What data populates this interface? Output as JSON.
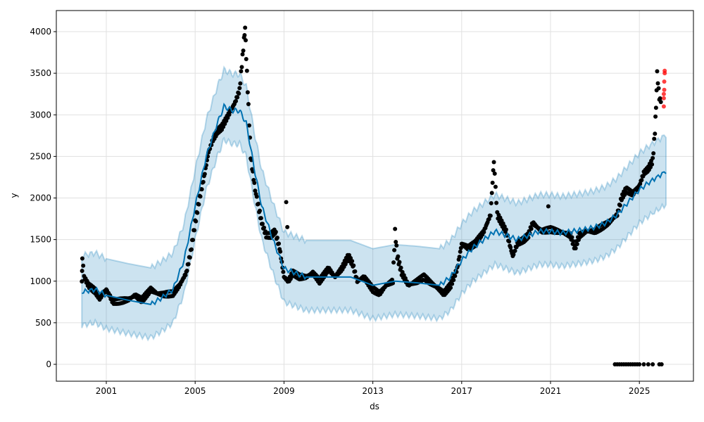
{
  "chart_data": {
    "type": "line",
    "title": "",
    "xlabel": "ds",
    "ylabel": "y",
    "xlim": [
      1999.0,
      2026.9
    ],
    "ylim": [
      -200,
      4250
    ],
    "xticks": [
      2001,
      2005,
      2009,
      2013,
      2017,
      2021,
      2025
    ],
    "xtick_labels": [
      "2001",
      "2005",
      "2009",
      "2013",
      "2017",
      "2021",
      "2025"
    ],
    "yticks": [
      0,
      500,
      1000,
      1500,
      2000,
      2500,
      3000,
      3500,
      4000
    ],
    "ytick_labels": [
      "0",
      "500",
      "1000",
      "1500",
      "2000",
      "2500",
      "3000",
      "3500",
      "4000"
    ],
    "grid": true,
    "colors": {
      "forecast": "#0072B2",
      "band": "#0072B2",
      "observed": "#000000",
      "future_observed": "#ff0000"
    },
    "forecast": {
      "x": [
        1999.9,
        2000.5,
        2001,
        2002,
        2003,
        2003.5,
        2004,
        2004.5,
        2005,
        2005.5,
        2006,
        2006.3,
        2006.7,
        2007,
        2007.3,
        2007.7,
        2008,
        2008.5,
        2009,
        2009.5,
        2010,
        2011,
        2012,
        2013,
        2014,
        2015,
        2016,
        2016.5,
        2017,
        2017.5,
        2018,
        2018.5,
        2019,
        2019.5,
        2020,
        2020.5,
        2021,
        2021.5,
        2022,
        2022.5,
        2023,
        2023.5,
        2024,
        2024.5,
        2025,
        2025.5,
        2026.2
      ],
      "yhat": [
        870,
        900,
        830,
        770,
        720,
        800,
        900,
        1250,
        1900,
        2500,
        2900,
        3100,
        3050,
        3050,
        2900,
        2300,
        1900,
        1500,
        1150,
        1100,
        1050,
        1050,
        1050,
        950,
        1000,
        980,
        950,
        1050,
        1250,
        1400,
        1500,
        1600,
        1550,
        1500,
        1550,
        1600,
        1600,
        1580,
        1600,
        1620,
        1650,
        1700,
        1800,
        1950,
        2100,
        2200,
        2320
      ]
    },
    "band_offset": {
      "upper": 440,
      "lower": 400
    },
    "observed": [
      [
        1999.9,
        1000
      ],
      [
        1999.92,
        1300
      ],
      [
        2000.0,
        1050
      ],
      [
        2000.2,
        950
      ],
      [
        2000.5,
        880
      ],
      [
        2000.7,
        800
      ],
      [
        2001,
        900
      ],
      [
        2001.3,
        750
      ],
      [
        2001.6,
        760
      ],
      [
        2002,
        780
      ],
      [
        2002.3,
        830
      ],
      [
        2002.6,
        770
      ],
      [
        2003,
        900
      ],
      [
        2003.3,
        850
      ],
      [
        2003.6,
        840
      ],
      [
        2004,
        850
      ],
      [
        2004.3,
        950
      ],
      [
        2004.6,
        1100
      ],
      [
        2004.8,
        1350
      ],
      [
        2005,
        1700
      ],
      [
        2005.2,
        2000
      ],
      [
        2005.4,
        2250
      ],
      [
        2005.6,
        2550
      ],
      [
        2005.8,
        2700
      ],
      [
        2006,
        2800
      ],
      [
        2006.2,
        2850
      ],
      [
        2006.4,
        2950
      ],
      [
        2006.6,
        3050
      ],
      [
        2006.8,
        3150
      ],
      [
        2007,
        3300
      ],
      [
        2007.1,
        3600
      ],
      [
        2007.2,
        3900
      ],
      [
        2007.25,
        4050
      ],
      [
        2007.3,
        3700
      ],
      [
        2007.4,
        3100
      ],
      [
        2007.5,
        2500
      ],
      [
        2007.6,
        2300
      ],
      [
        2007.7,
        2100
      ],
      [
        2007.85,
        1900
      ],
      [
        2008,
        1700
      ],
      [
        2008.2,
        1550
      ],
      [
        2008.4,
        1550
      ],
      [
        2008.6,
        1600
      ],
      [
        2008.8,
        1400
      ],
      [
        2009,
        1050
      ],
      [
        2009.2,
        1000
      ],
      [
        2009.4,
        1100
      ],
      [
        2009.7,
        1050
      ],
      [
        2010,
        1050
      ],
      [
        2010.3,
        1100
      ],
      [
        2010.6,
        1000
      ],
      [
        2011,
        1150
      ],
      [
        2011.3,
        1050
      ],
      [
        2011.6,
        1150
      ],
      [
        2011.9,
        1300
      ],
      [
        2012.1,
        1200
      ],
      [
        2012.3,
        1000
      ],
      [
        2012.6,
        1050
      ],
      [
        2013,
        900
      ],
      [
        2013.3,
        850
      ],
      [
        2013.6,
        950
      ],
      [
        2013.9,
        1000
      ],
      [
        2014,
        1600
      ],
      [
        2014.1,
        1300
      ],
      [
        2014.3,
        1100
      ],
      [
        2014.6,
        950
      ],
      [
        2015,
        1000
      ],
      [
        2015.3,
        1050
      ],
      [
        2015.6,
        980
      ],
      [
        2016,
        900
      ],
      [
        2016.2,
        850
      ],
      [
        2016.5,
        950
      ],
      [
        2016.8,
        1150
      ],
      [
        2017,
        1450
      ],
      [
        2017.3,
        1400
      ],
      [
        2017.6,
        1450
      ],
      [
        2018,
        1600
      ],
      [
        2018.3,
        1800
      ],
      [
        2018.45,
        2450
      ],
      [
        2018.6,
        1800
      ],
      [
        2018.8,
        1700
      ],
      [
        2019,
        1600
      ],
      [
        2019.3,
        1300
      ],
      [
        2019.5,
        1450
      ],
      [
        2019.8,
        1500
      ],
      [
        2020,
        1550
      ],
      [
        2020.2,
        1700
      ],
      [
        2020.4,
        1650
      ],
      [
        2020.6,
        1600
      ],
      [
        2021,
        1620
      ],
      [
        2021.3,
        1600
      ],
      [
        2021.6,
        1580
      ],
      [
        2021.9,
        1550
      ],
      [
        2022.1,
        1400
      ],
      [
        2022.3,
        1550
      ],
      [
        2022.6,
        1600
      ],
      [
        2023,
        1600
      ],
      [
        2023.3,
        1650
      ],
      [
        2023.6,
        1700
      ],
      [
        2024,
        1800
      ],
      [
        2024.2,
        2000
      ],
      [
        2024.4,
        2100
      ],
      [
        2024.7,
        2050
      ],
      [
        2025,
        2150
      ],
      [
        2025.2,
        2300
      ],
      [
        2025.4,
        2350
      ],
      [
        2025.6,
        2450
      ],
      [
        2025.7,
        2800
      ],
      [
        2025.75,
        3100
      ],
      [
        2025.8,
        3500
      ],
      [
        2025.9,
        3200
      ],
      [
        2026.0,
        3150
      ]
    ],
    "observed_outliers": [
      [
        2009.1,
        1950
      ],
      [
        2009.15,
        1650
      ],
      [
        2020.9,
        1900
      ]
    ],
    "observed_zeros": [
      2023.9,
      2024.0,
      2024.1,
      2024.2,
      2024.3,
      2024.4,
      2024.5,
      2024.6,
      2024.7,
      2024.8,
      2024.9,
      2025.0,
      2025.2,
      2025.4,
      2025.6,
      2025.9,
      2026.0
    ],
    "future_observed": [
      [
        2026.1,
        3100
      ],
      [
        2026.1,
        3200
      ],
      [
        2026.12,
        3300
      ],
      [
        2026.12,
        3400
      ],
      [
        2026.14,
        3500
      ],
      [
        2026.14,
        3530
      ],
      [
        2026.1,
        3250
      ]
    ]
  }
}
